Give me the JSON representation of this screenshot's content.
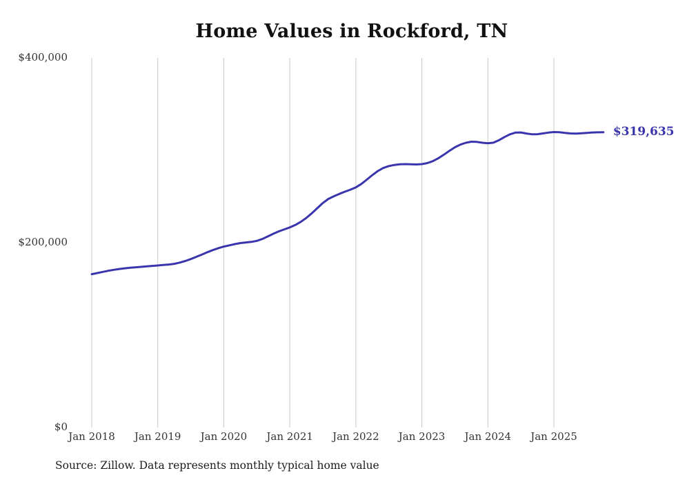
{
  "chart_data": {
    "type": "line",
    "title": "Home Values in Rockford, TN",
    "ylabel": "",
    "xlabel": "",
    "ylim": [
      0,
      400000
    ],
    "yticks": [
      0,
      200000,
      400000
    ],
    "ytick_labels": [
      "$0",
      "$200,000",
      "$400,000"
    ],
    "xtick_labels": [
      "Jan 2018",
      "Jan 2019",
      "Jan 2020",
      "Jan 2021",
      "Jan 2022",
      "Jan 2023",
      "Jan 2024",
      "Jan 2025"
    ],
    "x_start": "Jan 2018",
    "x_end": "Oct 2025",
    "grid": "vertical",
    "line_color": "#3a35ad",
    "grid_color": "#c9c9c9",
    "end_label": "$319,635",
    "end_value": 319635,
    "source": "Source: Zillow. Data represents monthly typical home value",
    "values": [
      166000,
      167200,
      168400,
      169600,
      170700,
      171600,
      172300,
      172900,
      173400,
      173900,
      174400,
      174900,
      175400,
      175900,
      176400,
      177200,
      178500,
      180200,
      182300,
      184700,
      187200,
      189700,
      192000,
      194100,
      195800,
      197200,
      198500,
      199600,
      200300,
      200900,
      202000,
      204000,
      206800,
      209700,
      212300,
      214500,
      216600,
      219200,
      222600,
      226900,
      231900,
      237400,
      243000,
      247400,
      250300,
      252800,
      255200,
      257400,
      259900,
      263600,
      268300,
      273200,
      277600,
      280900,
      283000,
      284200,
      284900,
      285100,
      284900,
      284700,
      285100,
      286200,
      288300,
      291400,
      295300,
      299500,
      303300,
      306200,
      308200,
      309300,
      309100,
      308200,
      307600,
      308300,
      310900,
      314300,
      317300,
      319200,
      319300,
      318200,
      317400,
      317500,
      318300,
      319200,
      319800,
      319600,
      318900,
      318300,
      318100,
      318400,
      318900,
      319300,
      319500,
      319635
    ]
  }
}
